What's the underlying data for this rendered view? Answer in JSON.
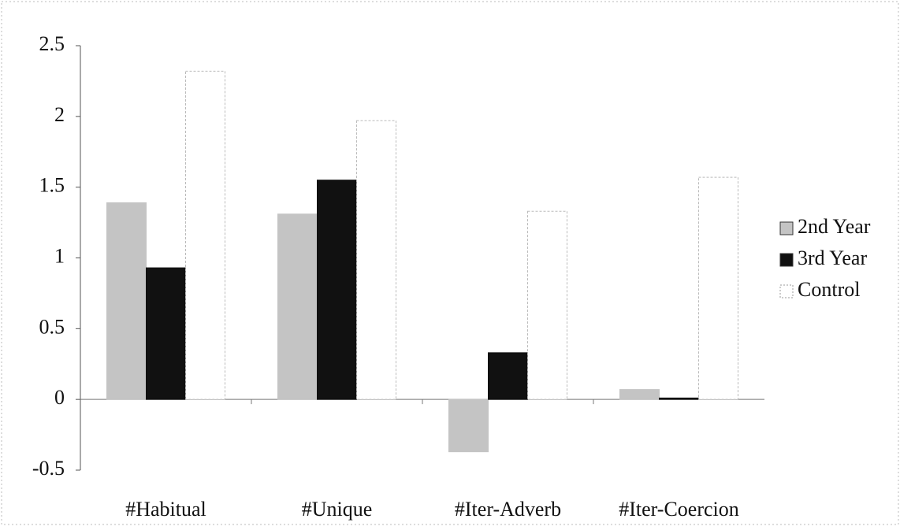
{
  "chart_data": {
    "type": "bar",
    "categories": [
      "#Habitual",
      "#Unique",
      "#Iter-Adverb",
      "#Iter-Coercion"
    ],
    "series": [
      {
        "name": "2nd Year",
        "color": "#c4c4c4",
        "values": [
          1.39,
          1.31,
          -0.37,
          0.07
        ]
      },
      {
        "name": "3rd Year",
        "color": "#111111",
        "values": [
          0.93,
          1.55,
          0.33,
          0.01
        ]
      },
      {
        "name": "Control",
        "color": "#ffffff",
        "values": [
          2.32,
          1.97,
          1.33,
          1.57
        ]
      }
    ],
    "ylim": [
      -0.5,
      2.5
    ],
    "yticks": [
      -0.5,
      0,
      0.5,
      1,
      1.5,
      2,
      2.5
    ],
    "legend": "right"
  }
}
